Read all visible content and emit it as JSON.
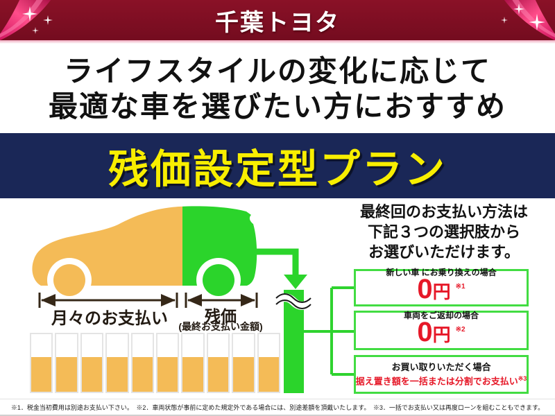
{
  "header": {
    "title": "千葉トヨタ",
    "bg_color": "#7c0e22",
    "ribbon_color": "#e8175d"
  },
  "tagline": {
    "line1": "ライフスタイルの変化に応じて",
    "line2": "最適な車を選びたい方におすすめ"
  },
  "banner": {
    "text": "残価設定型プラン",
    "bg_color": "#1a2757",
    "text_color": "#f8ee00"
  },
  "diagram": {
    "monthly_label": "月々のお支払い",
    "residual_label": "残価",
    "residual_sub": "(最終お支払い金額)",
    "bar_count": 10,
    "orange_color": "#f4bb57",
    "green_color": "#2bd42b"
  },
  "options": {
    "intro_line1": "最終回のお支払い方法は",
    "intro_line2": "下記３つの選択肢から",
    "intro_line3": "お選びいただけます。",
    "boxes": [
      {
        "label": "新しい車 にお乗り換えの場合",
        "price": "0",
        "unit": "円",
        "note": "※1"
      },
      {
        "label": "車両をご返却の場合",
        "price": "0",
        "unit": "円",
        "note": "※2"
      },
      {
        "label": "お買い取りいただく場合",
        "detail": "据え置き額を一括または分割でお支払い",
        "note": "※3"
      }
    ],
    "price_color": "#e61828",
    "border_color": "#42dc42"
  },
  "footnotes": "※1．税金当初費用は別途お支払い下さい。　※2．車両状態が事前に定めた規定外である場合には、別途差額を頂戴いたします。　※3．一括でお支払い又は再度ローンを組むこともできます。"
}
